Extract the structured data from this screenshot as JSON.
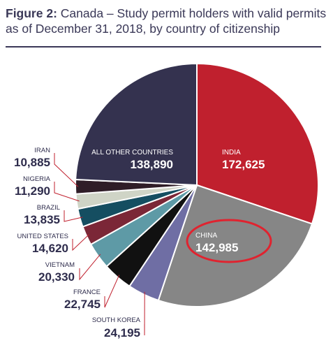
{
  "header": {
    "figure_label": "Figure 2:",
    "title_text": " Canada – Study permit holders with valid permits as of December 31, 2018, by country of citizenship"
  },
  "chart_data": {
    "type": "pie",
    "title": "Figure 2: Canada – Study permit holders with valid permits as of December 31, 2018, by country of citizenship",
    "slices": [
      {
        "name": "INDIA",
        "value": 172625,
        "display": "172,625",
        "color": "#c0202e"
      },
      {
        "name": "CHINA",
        "value": 142985,
        "display": "142,985",
        "color": "#868686"
      },
      {
        "name": "SOUTH KOREA",
        "value": 24195,
        "display": "24,195",
        "color": "#6f6ea4"
      },
      {
        "name": "FRANCE",
        "value": 22745,
        "display": "22,745",
        "color": "#111111"
      },
      {
        "name": "VIETNAM",
        "value": 20330,
        "display": "20,330",
        "color": "#5e9aa6"
      },
      {
        "name": "UNITED STATES",
        "value": 14620,
        "display": "14,620",
        "color": "#7b2737"
      },
      {
        "name": "BRAZIL",
        "value": 13835,
        "display": "13,835",
        "color": "#154e61"
      },
      {
        "name": "NIGERIA",
        "value": 11290,
        "display": "11,290",
        "color": "#cfd4c6"
      },
      {
        "name": "IRAN",
        "value": 10885,
        "display": "10,885",
        "color": "#2f1d27"
      },
      {
        "name": "ALL OTHER COUNTRIES",
        "value": 138890,
        "display": "138,890",
        "color": "#34324f"
      }
    ],
    "highlight": {
      "slice": "CHINA",
      "color": "#e0232f"
    },
    "leader_line_color": "#c0202e"
  }
}
